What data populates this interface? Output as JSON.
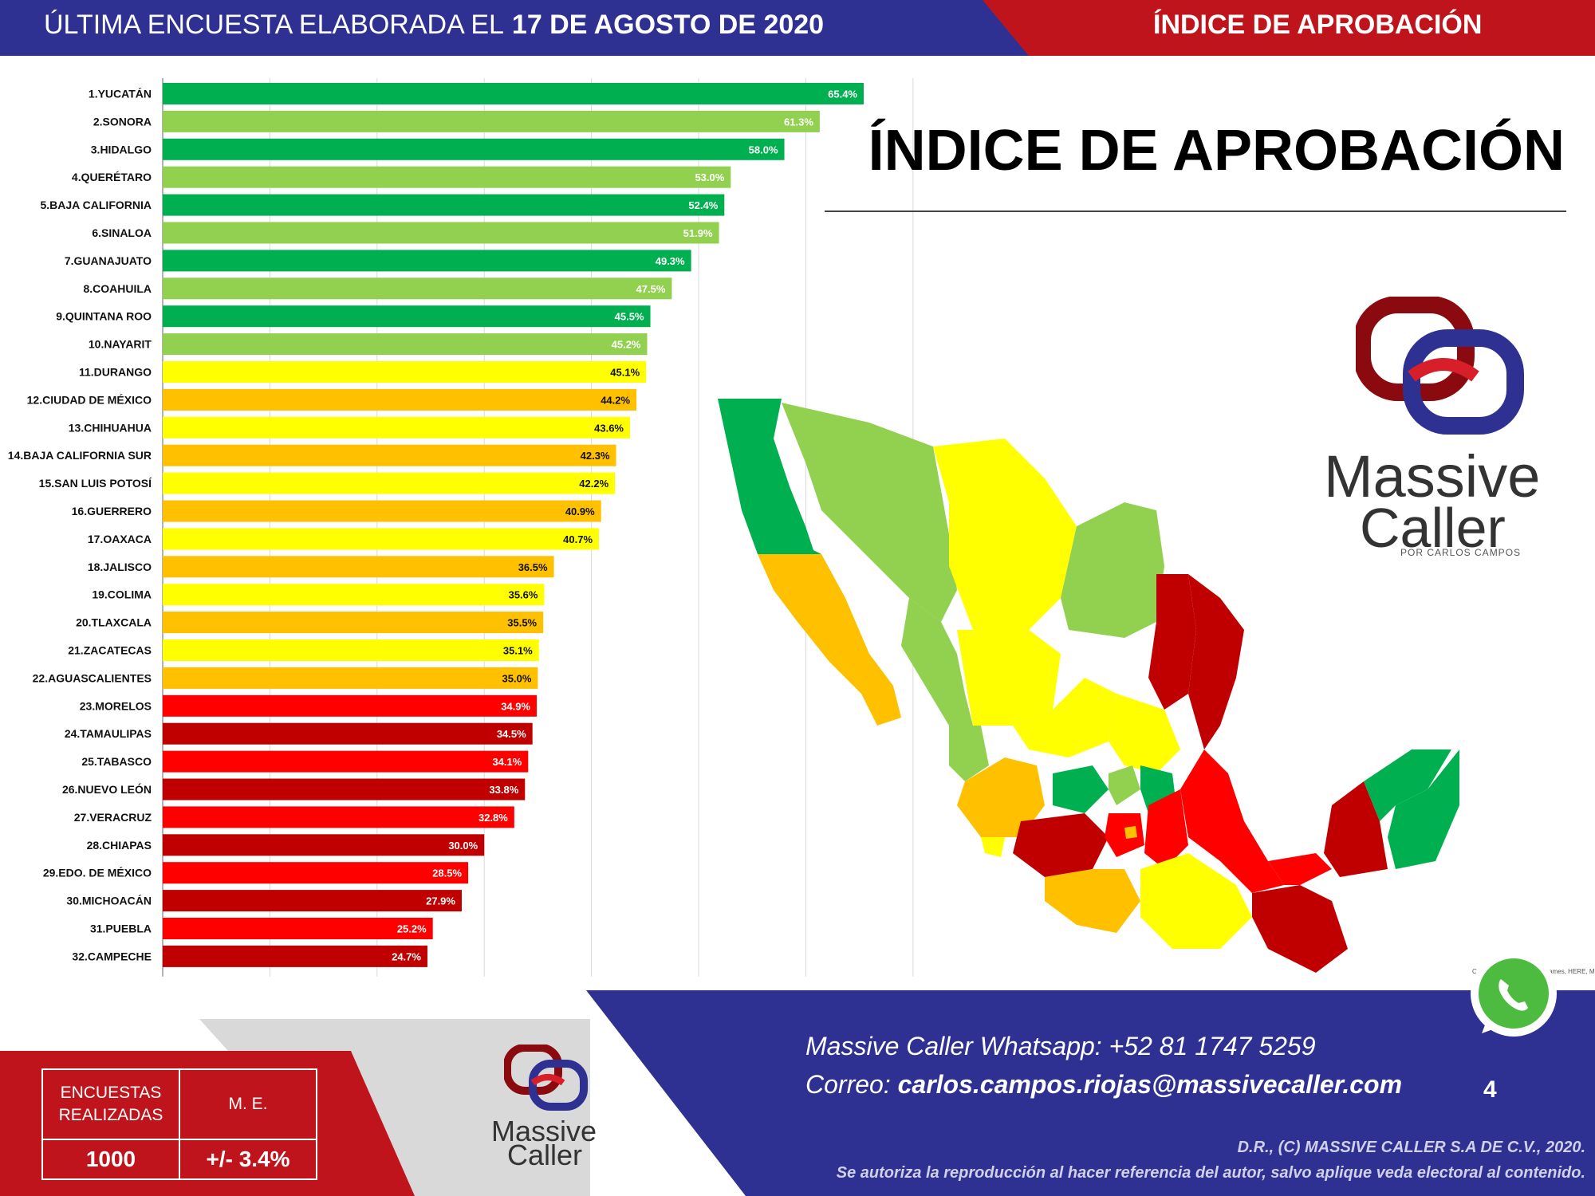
{
  "header": {
    "left_text": "ÚLTIMA ENCUESTA ELABORADA EL",
    "date": "17 DE AGOSTO DE 2020",
    "right_text": "ÍNDICE DE APROBACIÓN"
  },
  "main_title": "ÍNDICE DE APROBACIÓN",
  "logo": {
    "line1": "Massive",
    "line2": "Caller",
    "tagline": "POR CARLOS CAMPOS"
  },
  "colors": {
    "dark_green": "#00b050",
    "light_green": "#92d050",
    "yellow": "#ffff00",
    "orange": "#ffc000",
    "red": "#ff0000",
    "dark_red": "#c00000",
    "navy": "#2e3192",
    "brand_red": "#c0141c"
  },
  "chart_data": {
    "type": "bar",
    "orientation": "horizontal",
    "xlim": [
      0,
      70
    ],
    "grid": true,
    "categories": [
      "1.YUCATÁN",
      "2.SONORA",
      "3.HIDALGO",
      "4.QUERÉTARO",
      "5.BAJA CALIFORNIA",
      "6.SINALOA",
      "7.GUANAJUATO",
      "8.COAHUILA",
      "9.QUINTANA ROO",
      "10.NAYARIT",
      "11.DURANGO",
      "12.CIUDAD DE MÉXICO",
      "13.CHIHUAHUA",
      "14.BAJA CALIFORNIA SUR",
      "15.SAN LUIS POTOSÍ",
      "16.GUERRERO",
      "17.OAXACA",
      "18.JALISCO",
      "19.COLIMA",
      "20.TLAXCALA",
      "21.ZACATECAS",
      "22.AGUASCALIENTES",
      "23.MORELOS",
      "24.TAMAULIPAS",
      "25.TABASCO",
      "26.NUEVO LEÓN",
      "27.VERACRUZ",
      "28.CHIAPAS",
      "29.EDO. DE MÉXICO",
      "30.MICHOACÁN",
      "31.PUEBLA",
      "32.CAMPECHE"
    ],
    "values": [
      65.4,
      61.3,
      58.0,
      53.0,
      52.4,
      51.9,
      49.3,
      47.5,
      45.5,
      45.2,
      45.1,
      44.2,
      43.6,
      42.3,
      42.2,
      40.9,
      40.7,
      36.5,
      35.6,
      35.5,
      35.1,
      35.0,
      34.9,
      34.5,
      34.1,
      33.8,
      32.8,
      30.0,
      28.5,
      27.9,
      25.2,
      24.7
    ],
    "value_labels": [
      "65.4%",
      "61.3%",
      "58.0%",
      "53.0%",
      "52.4%",
      "51.9%",
      "49.3%",
      "47.5%",
      "45.5%",
      "45.2%",
      "45.1%",
      "44.2%",
      "43.6%",
      "42.3%",
      "42.2%",
      "40.9%",
      "40.7%",
      "36.5%",
      "35.6%",
      "35.5%",
      "35.1%",
      "35.0%",
      "34.9%",
      "34.5%",
      "34.1%",
      "33.8%",
      "32.8%",
      "30.0%",
      "28.5%",
      "27.9%",
      "25.2%",
      "24.7%"
    ],
    "bar_colors": [
      "#00b050",
      "#92d050",
      "#00b050",
      "#92d050",
      "#00b050",
      "#92d050",
      "#00b050",
      "#92d050",
      "#00b050",
      "#92d050",
      "#ffff00",
      "#ffc000",
      "#ffff00",
      "#ffc000",
      "#ffff00",
      "#ffc000",
      "#ffff00",
      "#ffc000",
      "#ffff00",
      "#ffc000",
      "#ffff00",
      "#ffc000",
      "#ff0000",
      "#c00000",
      "#ff0000",
      "#c00000",
      "#ff0000",
      "#c00000",
      "#ff0000",
      "#c00000",
      "#ff0000",
      "#c00000"
    ]
  },
  "footer": {
    "whatsapp": "Massive Caller Whatsapp: +52    81 1747 5259",
    "email_label": "Correo:",
    "email": "carlos.campos.riojas@massivecaller.com",
    "page_number": "4",
    "copyright": "D.R., (C) MASSIVE CALLER S.A DE C.V., 2020.",
    "notice": "Se autoriza la reproducción al hacer referencia del autor, salvo aplique veda electoral al contenido.",
    "map_credit": "Con tecnología de © GeoNames, HERE, MSFT, Microsoft, Wiki"
  },
  "stats": {
    "col1_header": "ENCUESTAS REALIZADAS",
    "col2_header": "M. E.",
    "col1_value": "1000",
    "col2_value": "+/- 3.4%"
  }
}
